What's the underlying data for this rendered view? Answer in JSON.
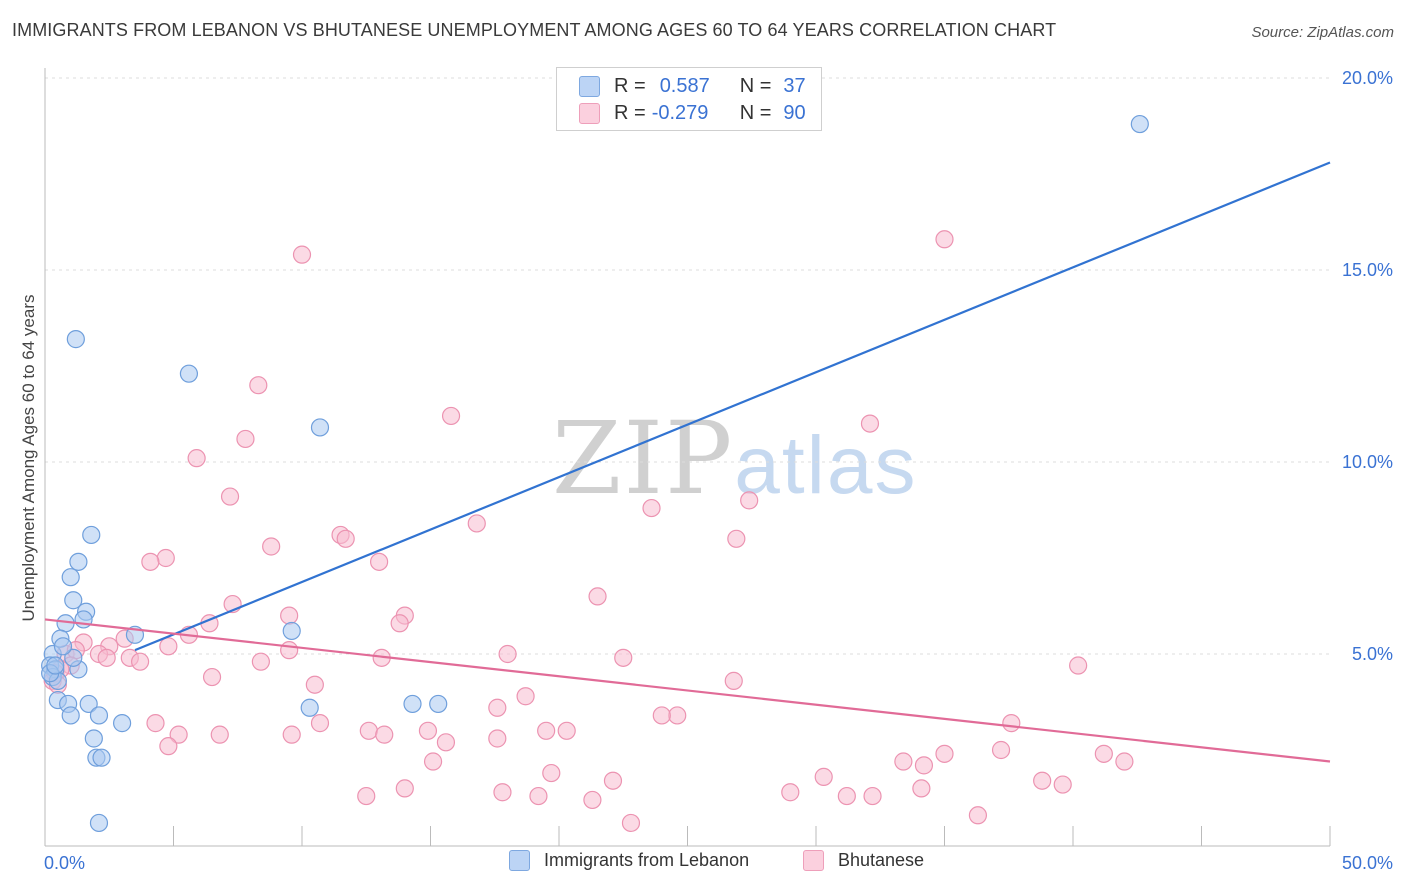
{
  "title": "IMMIGRANTS FROM LEBANON VS BHUTANESE UNEMPLOYMENT AMONG AGES 60 TO 64 YEARS CORRELATION CHART",
  "source": "Source: ZipAtlas.com",
  "watermark": {
    "zip": "ZIP",
    "atlas": "atlas"
  },
  "colors": {
    "blue_fill": "#a9c8f0",
    "blue_stroke": "#6f9fdc",
    "blue_line": "#3173d1",
    "pink_fill": "#f7bcd0",
    "pink_stroke": "#ec93b1",
    "pink_line": "#e16b97",
    "value_text": "#3a72d3"
  },
  "stats": {
    "lebanon": {
      "r_label": "R =",
      "r_value": "0.587",
      "n_label": "N =",
      "n_value": "37"
    },
    "bhutanese": {
      "r_label": "R =",
      "r_value": "-0.279",
      "n_label": "N =",
      "n_value": "90"
    }
  },
  "legend": {
    "lebanon": "Immigrants from Lebanon",
    "bhutanese": "Bhutanese"
  },
  "chart_data": {
    "type": "scatter",
    "title": "IMMIGRANTS FROM LEBANON VS BHUTANESE UNEMPLOYMENT AMONG AGES 60 TO 64 YEARS CORRELATION CHART",
    "xlabel": "",
    "ylabel": "Unemployment Among Ages 60 to 64 years",
    "xlim": [
      0,
      50
    ],
    "ylim": [
      0,
      20
    ],
    "x_ticks": [
      0,
      5,
      10,
      15,
      20,
      25,
      30,
      35,
      40,
      45,
      50
    ],
    "x_tick_labels": {
      "0": "0.0%",
      "50": "50.0%"
    },
    "y_ticks": [
      5,
      10,
      15,
      20
    ],
    "y_tick_labels": [
      "5.0%",
      "10.0%",
      "15.0%",
      "20.0%"
    ],
    "grid": true,
    "series": [
      {
        "name": "Immigrants from Lebanon",
        "r": 0.587,
        "n": 37,
        "trend": {
          "x": [
            3.5,
            50
          ],
          "y": [
            5.1,
            17.8
          ]
        },
        "points": [
          [
            1.2,
            13.2
          ],
          [
            5.6,
            12.3
          ],
          [
            10.7,
            10.9
          ],
          [
            42.6,
            18.8
          ],
          [
            1.8,
            8.1
          ],
          [
            1.3,
            7.4
          ],
          [
            1.0,
            7.0
          ],
          [
            1.6,
            6.1
          ],
          [
            1.1,
            6.4
          ],
          [
            1.5,
            5.9
          ],
          [
            0.8,
            5.8
          ],
          [
            0.6,
            5.4
          ],
          [
            0.3,
            5.0
          ],
          [
            0.2,
            4.7
          ],
          [
            0.4,
            4.6
          ],
          [
            0.3,
            4.4
          ],
          [
            0.5,
            4.3
          ],
          [
            0.2,
            4.5
          ],
          [
            1.3,
            4.6
          ],
          [
            1.1,
            4.9
          ],
          [
            0.5,
            3.8
          ],
          [
            0.9,
            3.7
          ],
          [
            1.7,
            3.7
          ],
          [
            1.0,
            3.4
          ],
          [
            2.1,
            3.4
          ],
          [
            3.0,
            3.2
          ],
          [
            1.9,
            2.8
          ],
          [
            2.0,
            2.3
          ],
          [
            2.2,
            2.3
          ],
          [
            2.1,
            0.6
          ],
          [
            3.5,
            5.5
          ],
          [
            9.6,
            5.6
          ],
          [
            10.3,
            3.6
          ],
          [
            14.3,
            3.7
          ],
          [
            15.3,
            3.7
          ],
          [
            0.4,
            4.7
          ],
          [
            0.7,
            5.2
          ]
        ]
      },
      {
        "name": "Bhutanese",
        "r": -0.279,
        "n": 90,
        "trend": {
          "x": [
            0,
            50
          ],
          "y": [
            5.9,
            2.2
          ]
        },
        "points": [
          [
            10.0,
            15.4
          ],
          [
            35.0,
            15.8
          ],
          [
            8.3,
            12.0
          ],
          [
            15.8,
            11.2
          ],
          [
            32.1,
            11.0
          ],
          [
            7.8,
            10.6
          ],
          [
            5.9,
            10.1
          ],
          [
            7.2,
            9.1
          ],
          [
            27.4,
            9.0
          ],
          [
            23.6,
            8.8
          ],
          [
            16.8,
            8.4
          ],
          [
            11.5,
            8.1
          ],
          [
            11.7,
            8.0
          ],
          [
            26.9,
            8.0
          ],
          [
            8.8,
            7.8
          ],
          [
            4.7,
            7.5
          ],
          [
            4.1,
            7.4
          ],
          [
            13.0,
            7.4
          ],
          [
            21.5,
            6.5
          ],
          [
            7.3,
            6.3
          ],
          [
            9.5,
            6.0
          ],
          [
            14.0,
            6.0
          ],
          [
            13.8,
            5.8
          ],
          [
            6.4,
            5.8
          ],
          [
            5.6,
            5.5
          ],
          [
            3.1,
            5.4
          ],
          [
            2.5,
            5.2
          ],
          [
            1.5,
            5.3
          ],
          [
            0.8,
            5.0
          ],
          [
            1.2,
            5.1
          ],
          [
            2.1,
            5.0
          ],
          [
            2.4,
            4.9
          ],
          [
            3.3,
            4.9
          ],
          [
            3.7,
            4.8
          ],
          [
            4.8,
            5.2
          ],
          [
            9.5,
            5.1
          ],
          [
            18.0,
            5.0
          ],
          [
            22.5,
            4.9
          ],
          [
            13.1,
            4.9
          ],
          [
            8.4,
            4.8
          ],
          [
            1.0,
            4.7
          ],
          [
            0.6,
            4.6
          ],
          [
            0.4,
            4.5
          ],
          [
            0.3,
            4.3
          ],
          [
            0.5,
            4.2
          ],
          [
            6.5,
            4.4
          ],
          [
            26.8,
            4.3
          ],
          [
            10.5,
            4.2
          ],
          [
            18.7,
            3.9
          ],
          [
            17.6,
            3.6
          ],
          [
            24.6,
            3.4
          ],
          [
            24.0,
            3.4
          ],
          [
            37.6,
            3.2
          ],
          [
            40.2,
            4.7
          ],
          [
            4.3,
            3.2
          ],
          [
            10.7,
            3.2
          ],
          [
            12.6,
            3.0
          ],
          [
            14.9,
            3.0
          ],
          [
            19.5,
            3.0
          ],
          [
            20.3,
            3.0
          ],
          [
            13.2,
            2.9
          ],
          [
            5.2,
            2.9
          ],
          [
            9.6,
            2.9
          ],
          [
            6.8,
            2.9
          ],
          [
            17.6,
            2.8
          ],
          [
            15.6,
            2.7
          ],
          [
            4.8,
            2.6
          ],
          [
            37.2,
            2.5
          ],
          [
            35.0,
            2.4
          ],
          [
            41.2,
            2.4
          ],
          [
            33.4,
            2.2
          ],
          [
            42.0,
            2.2
          ],
          [
            34.2,
            2.1
          ],
          [
            15.1,
            2.2
          ],
          [
            19.7,
            1.9
          ],
          [
            30.3,
            1.8
          ],
          [
            22.1,
            1.7
          ],
          [
            38.8,
            1.7
          ],
          [
            39.6,
            1.6
          ],
          [
            34.1,
            1.5
          ],
          [
            14.0,
            1.5
          ],
          [
            17.8,
            1.4
          ],
          [
            29.0,
            1.4
          ],
          [
            12.5,
            1.3
          ],
          [
            19.2,
            1.3
          ],
          [
            31.2,
            1.3
          ],
          [
            32.2,
            1.3
          ],
          [
            21.3,
            1.2
          ],
          [
            36.3,
            0.8
          ],
          [
            22.8,
            0.6
          ]
        ]
      }
    ]
  }
}
